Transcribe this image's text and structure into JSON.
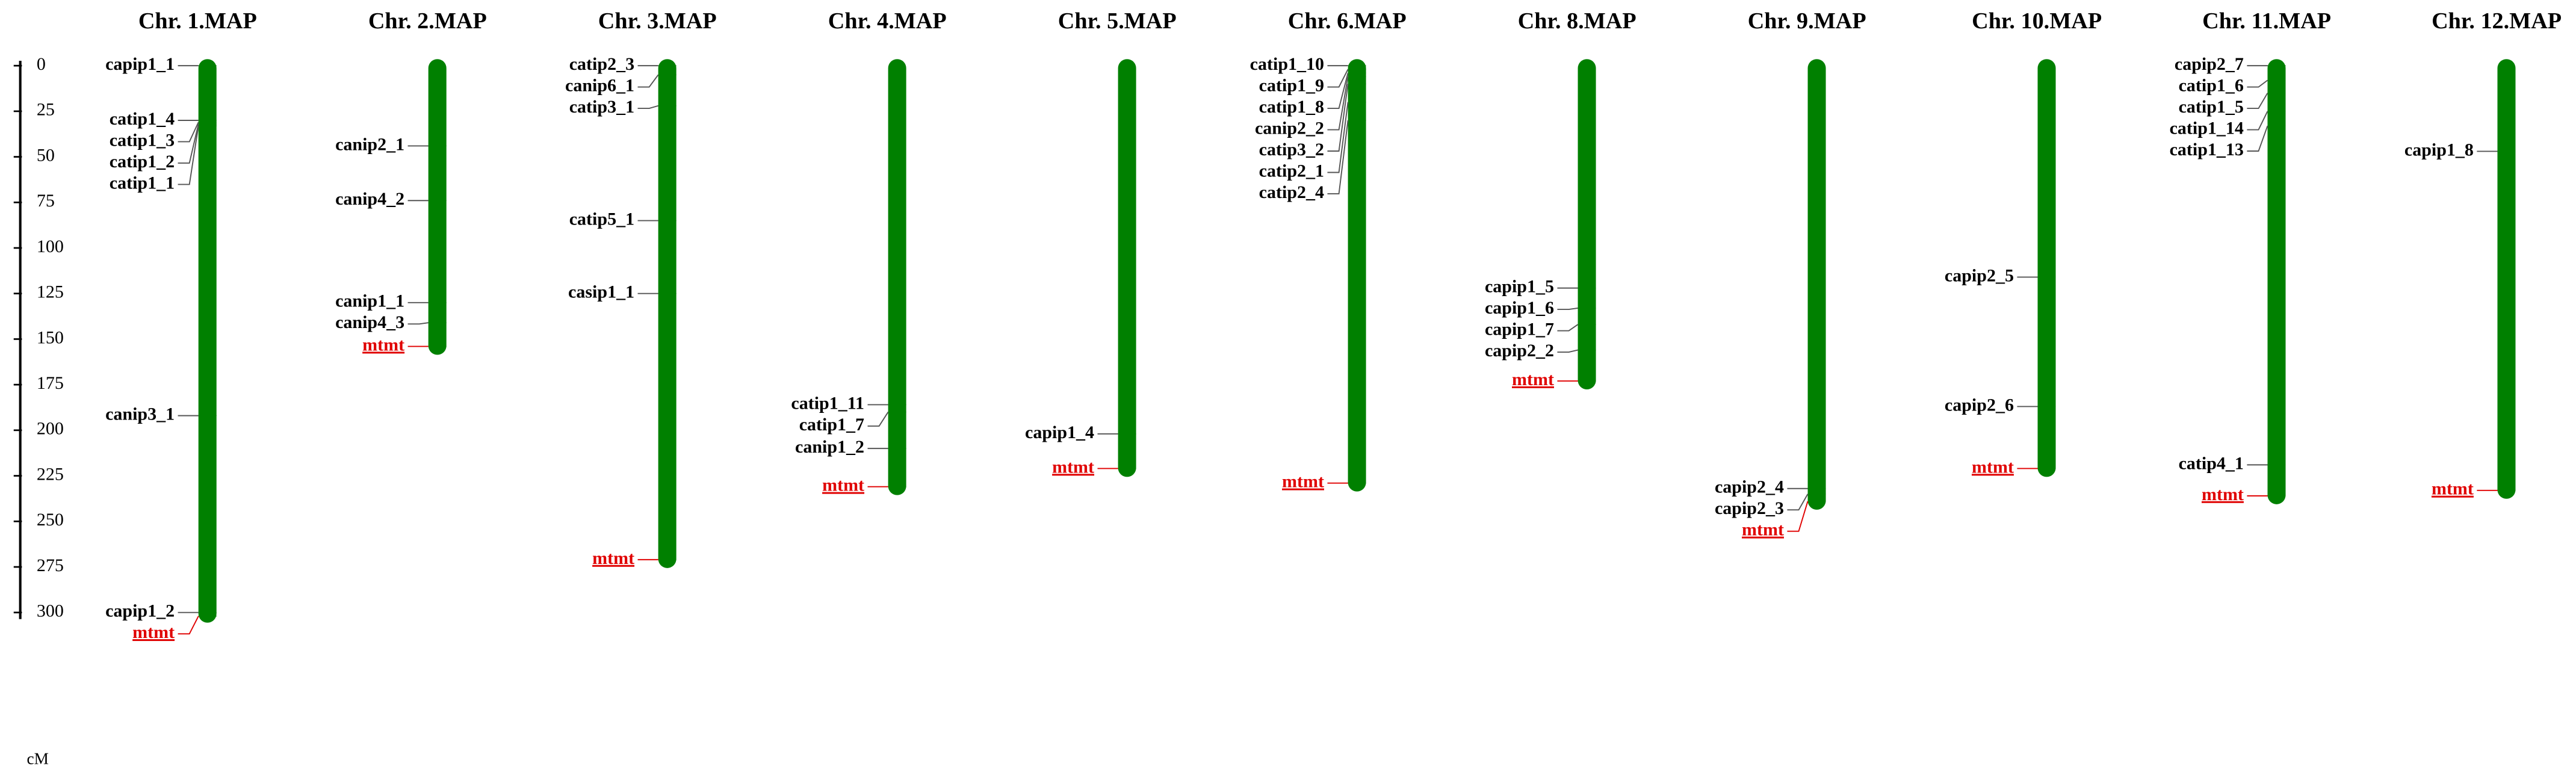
{
  "chart_data": {
    "type": "chromosome-map",
    "axis_label": "cM",
    "ylim": [
      0,
      300
    ],
    "yticks": [
      0,
      25,
      50,
      75,
      100,
      125,
      150,
      175,
      200,
      225,
      250,
      275,
      300
    ],
    "bar_color": "#008000",
    "chromosomes": [
      {
        "name": "Chr. 1.MAP",
        "length": 302,
        "markers": [
          {
            "label": "capip1_1",
            "position": 0
          },
          {
            "label": "catip1_4",
            "position": 30
          },
          {
            "label": "catip1_3",
            "position": 31
          },
          {
            "label": "catip1_2",
            "position": 32
          },
          {
            "label": "catip1_1",
            "position": 33
          },
          {
            "label": "canip3_1",
            "position": 192
          },
          {
            "label": "capip1_2",
            "position": 300
          },
          {
            "label": "mtmt",
            "position": 302,
            "color": "#e00000"
          }
        ]
      },
      {
        "name": "Chr. 2.MAP",
        "length": 155,
        "markers": [
          {
            "label": "canip2_1",
            "position": 44
          },
          {
            "label": "canip4_2",
            "position": 74
          },
          {
            "label": "canip1_1",
            "position": 130
          },
          {
            "label": "canip4_3",
            "position": 141
          },
          {
            "label": "mtmt",
            "position": 154,
            "color": "#e00000"
          }
        ]
      },
      {
        "name": "Chr. 3.MAP",
        "length": 272,
        "markers": [
          {
            "label": "catip2_3",
            "position": 0
          },
          {
            "label": "canip6_1",
            "position": 5
          },
          {
            "label": "catip3_1",
            "position": 22
          },
          {
            "label": "catip5_1",
            "position": 85
          },
          {
            "label": "casip1_1",
            "position": 125
          },
          {
            "label": "mtmt",
            "position": 271,
            "color": "#e00000"
          }
        ]
      },
      {
        "name": "Chr. 4.MAP",
        "length": 232,
        "markers": [
          {
            "label": "catip1_11",
            "position": 186
          },
          {
            "label": "catip1_7",
            "position": 190
          },
          {
            "label": "canip1_2",
            "position": 210
          },
          {
            "label": "mtmt",
            "position": 231,
            "color": "#e00000"
          }
        ]
      },
      {
        "name": "Chr. 5.MAP",
        "length": 222,
        "markers": [
          {
            "label": "capip1_4",
            "position": 202
          },
          {
            "label": "mtmt",
            "position": 221,
            "color": "#e00000"
          }
        ]
      },
      {
        "name": "Chr. 6.MAP",
        "length": 230,
        "markers": [
          {
            "label": "catip1_10",
            "position": 0
          },
          {
            "label": "catip1_9",
            "position": 2
          },
          {
            "label": "catip1_8",
            "position": 4
          },
          {
            "label": "canip2_2",
            "position": 6
          },
          {
            "label": "catip3_2",
            "position": 10
          },
          {
            "label": "catip2_1",
            "position": 20
          },
          {
            "label": "catip2_4",
            "position": 30
          },
          {
            "label": "mtmt",
            "position": 229,
            "color": "#e00000"
          }
        ]
      },
      {
        "name": "Chr. 8.MAP",
        "length": 174,
        "markers": [
          {
            "label": "capip1_5",
            "position": 122
          },
          {
            "label": "capip1_6",
            "position": 133
          },
          {
            "label": "capip1_7",
            "position": 142
          },
          {
            "label": "capip2_2",
            "position": 156
          },
          {
            "label": "mtmt",
            "position": 173,
            "color": "#e00000"
          }
        ]
      },
      {
        "name": "Chr. 9.MAP",
        "length": 240,
        "markers": [
          {
            "label": "capip2_4",
            "position": 232
          },
          {
            "label": "capip2_3",
            "position": 235
          },
          {
            "label": "mtmt",
            "position": 239,
            "color": "#e00000"
          }
        ]
      },
      {
        "name": "Chr. 10.MAP",
        "length": 222,
        "markers": [
          {
            "label": "capip2_5",
            "position": 116
          },
          {
            "label": "capip2_6",
            "position": 187
          },
          {
            "label": "mtmt",
            "position": 221,
            "color": "#e00000"
          }
        ]
      },
      {
        "name": "Chr. 11.MAP",
        "length": 237,
        "markers": [
          {
            "label": "capip2_7",
            "position": 0
          },
          {
            "label": "catip1_6",
            "position": 8
          },
          {
            "label": "catip1_5",
            "position": 15
          },
          {
            "label": "catip1_14",
            "position": 25
          },
          {
            "label": "catip1_13",
            "position": 33
          },
          {
            "label": "catip4_1",
            "position": 219
          },
          {
            "label": "mtmt",
            "position": 236,
            "color": "#e00000"
          }
        ]
      },
      {
        "name": "Chr. 12.MAP",
        "length": 234,
        "markers": [
          {
            "label": "capip1_8",
            "position": 47
          },
          {
            "label": "mtmt",
            "position": 233,
            "color": "#e00000"
          }
        ]
      }
    ]
  }
}
